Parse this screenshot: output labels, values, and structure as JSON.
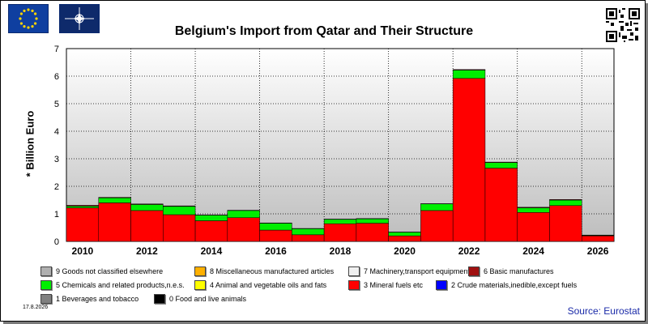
{
  "title": "Belgium's Import from Qatar and Their Structure",
  "ylabel": "* Billion Euro",
  "source": "Source: Eurostat",
  "date": "17.8.2026",
  "colors": {
    "mineral_fuels": "#ff0000",
    "chemicals": "#00ee00",
    "basic_manufactures": "#a01010",
    "machinery": "#f0f0f0",
    "misc_manufactured": "#ffb000",
    "not_classified": "#b0b0b0",
    "animal_veg_oils": "#ffff00",
    "crude_materials": "#0000ff",
    "beverages": "#808080",
    "food": "#000000"
  },
  "legend": [
    {
      "label": "9 Goods not classified elsewhere",
      "color": "#b0b0b0"
    },
    {
      "label": "8 Miscellaneous manufactured articles",
      "color": "#ffb000"
    },
    {
      "label": "7 Machinery,transport equipment",
      "color": "#f0f0f0"
    },
    {
      "label": "6 Basic manufactures",
      "color": "#a01010"
    },
    {
      "label": "5 Chemicals and related products,n.e.s.",
      "color": "#00ee00"
    },
    {
      "label": "4 Animal and vegetable oils and fats",
      "color": "#ffff00"
    },
    {
      "label": "3 Mineral fuels etc",
      "color": "#ff0000"
    },
    {
      "label": "2 Crude materials,inedible,except fuels",
      "color": "#0000ff"
    },
    {
      "label": "1 Beverages and tobacco",
      "color": "#808080"
    },
    {
      "label": "0 Food and live animals",
      "color": "#000000"
    }
  ],
  "chart_data": {
    "type": "bar",
    "stacked": true,
    "title": "Belgium's Import from Qatar and Their Structure",
    "ylabel": "* Billion Euro",
    "ylim": [
      0,
      7
    ],
    "yticks": [
      0,
      1,
      2,
      3,
      4,
      5,
      6,
      7
    ],
    "categories": [
      "2010",
      "2011",
      "2012",
      "2013",
      "2014",
      "2015",
      "2016",
      "2017",
      "2018",
      "2019",
      "2020",
      "2021",
      "2022",
      "2023",
      "2024",
      "2025",
      "2026"
    ],
    "xtick_labels": [
      "2010",
      "2012",
      "2014",
      "2016",
      "2018",
      "2020",
      "2022",
      "2024",
      "2026"
    ],
    "grid": true,
    "series": [
      {
        "name": "3 Mineral fuels etc",
        "color": "#ff0000",
        "values": [
          1.22,
          1.4,
          1.12,
          0.97,
          0.75,
          0.86,
          0.41,
          0.24,
          0.64,
          0.66,
          0.2,
          1.12,
          5.92,
          2.66,
          1.05,
          1.3,
          0.2
        ]
      },
      {
        "name": "5 Chemicals and related products,n.e.s.",
        "color": "#00ee00",
        "values": [
          0.06,
          0.18,
          0.22,
          0.3,
          0.2,
          0.26,
          0.25,
          0.22,
          0.16,
          0.16,
          0.13,
          0.24,
          0.3,
          0.2,
          0.17,
          0.2,
          0.02
        ]
      },
      {
        "name": "6 Basic manufactures",
        "color": "#a01010",
        "values": [
          0.03,
          0.02,
          0.02,
          0.02,
          0.01,
          0.01,
          0.01,
          0.01,
          0.01,
          0.01,
          0.01,
          0.01,
          0.02,
          0.02,
          0.02,
          0.02,
          0.01
        ]
      }
    ]
  }
}
